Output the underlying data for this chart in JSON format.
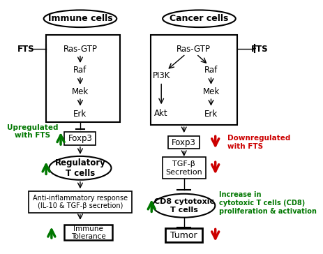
{
  "bg_color": "#ffffff",
  "immune_label": "Immune cells",
  "cancer_label": "Cancer cells",
  "fts_label": "FTS",
  "upregulated_text": "Upregulated\nwith FTS",
  "downregulated_text": "Downregulated\nwith FTS",
  "increase_text": "Increase in\ncytotoxic T cells (CD8)\nproliferation & activation",
  "green": "#007700",
  "red": "#cc0000",
  "black": "#000000"
}
